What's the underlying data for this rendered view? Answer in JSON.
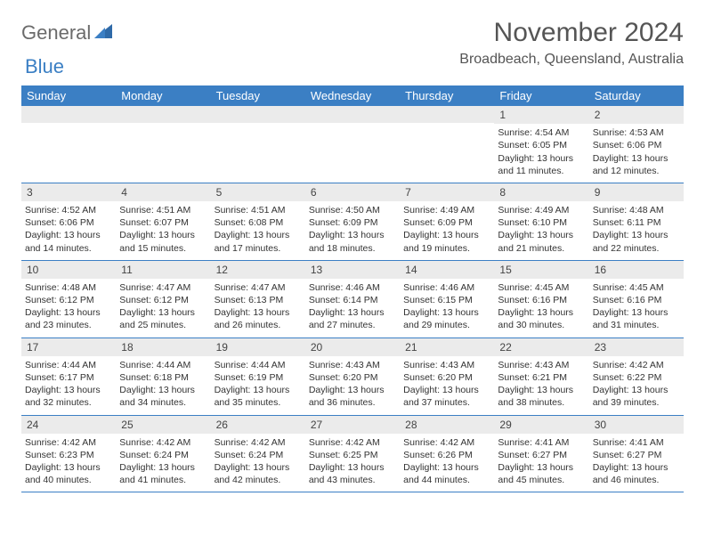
{
  "logo": {
    "text1": "General",
    "text2": "Blue"
  },
  "title": "November 2024",
  "location": "Broadbeach, Queensland, Australia",
  "accent_color": "#3b7fc4",
  "bar_color": "#ebebeb",
  "weekdays": [
    "Sunday",
    "Monday",
    "Tuesday",
    "Wednesday",
    "Thursday",
    "Friday",
    "Saturday"
  ],
  "weeks": [
    [
      null,
      null,
      null,
      null,
      null,
      {
        "n": "1",
        "sr": "4:54 AM",
        "ss": "6:05 PM",
        "dl": "13 hours and 11 minutes."
      },
      {
        "n": "2",
        "sr": "4:53 AM",
        "ss": "6:06 PM",
        "dl": "13 hours and 12 minutes."
      }
    ],
    [
      {
        "n": "3",
        "sr": "4:52 AM",
        "ss": "6:06 PM",
        "dl": "13 hours and 14 minutes."
      },
      {
        "n": "4",
        "sr": "4:51 AM",
        "ss": "6:07 PM",
        "dl": "13 hours and 15 minutes."
      },
      {
        "n": "5",
        "sr": "4:51 AM",
        "ss": "6:08 PM",
        "dl": "13 hours and 17 minutes."
      },
      {
        "n": "6",
        "sr": "4:50 AM",
        "ss": "6:09 PM",
        "dl": "13 hours and 18 minutes."
      },
      {
        "n": "7",
        "sr": "4:49 AM",
        "ss": "6:09 PM",
        "dl": "13 hours and 19 minutes."
      },
      {
        "n": "8",
        "sr": "4:49 AM",
        "ss": "6:10 PM",
        "dl": "13 hours and 21 minutes."
      },
      {
        "n": "9",
        "sr": "4:48 AM",
        "ss": "6:11 PM",
        "dl": "13 hours and 22 minutes."
      }
    ],
    [
      {
        "n": "10",
        "sr": "4:48 AM",
        "ss": "6:12 PM",
        "dl": "13 hours and 23 minutes."
      },
      {
        "n": "11",
        "sr": "4:47 AM",
        "ss": "6:12 PM",
        "dl": "13 hours and 25 minutes."
      },
      {
        "n": "12",
        "sr": "4:47 AM",
        "ss": "6:13 PM",
        "dl": "13 hours and 26 minutes."
      },
      {
        "n": "13",
        "sr": "4:46 AM",
        "ss": "6:14 PM",
        "dl": "13 hours and 27 minutes."
      },
      {
        "n": "14",
        "sr": "4:46 AM",
        "ss": "6:15 PM",
        "dl": "13 hours and 29 minutes."
      },
      {
        "n": "15",
        "sr": "4:45 AM",
        "ss": "6:16 PM",
        "dl": "13 hours and 30 minutes."
      },
      {
        "n": "16",
        "sr": "4:45 AM",
        "ss": "6:16 PM",
        "dl": "13 hours and 31 minutes."
      }
    ],
    [
      {
        "n": "17",
        "sr": "4:44 AM",
        "ss": "6:17 PM",
        "dl": "13 hours and 32 minutes."
      },
      {
        "n": "18",
        "sr": "4:44 AM",
        "ss": "6:18 PM",
        "dl": "13 hours and 34 minutes."
      },
      {
        "n": "19",
        "sr": "4:44 AM",
        "ss": "6:19 PM",
        "dl": "13 hours and 35 minutes."
      },
      {
        "n": "20",
        "sr": "4:43 AM",
        "ss": "6:20 PM",
        "dl": "13 hours and 36 minutes."
      },
      {
        "n": "21",
        "sr": "4:43 AM",
        "ss": "6:20 PM",
        "dl": "13 hours and 37 minutes."
      },
      {
        "n": "22",
        "sr": "4:43 AM",
        "ss": "6:21 PM",
        "dl": "13 hours and 38 minutes."
      },
      {
        "n": "23",
        "sr": "4:42 AM",
        "ss": "6:22 PM",
        "dl": "13 hours and 39 minutes."
      }
    ],
    [
      {
        "n": "24",
        "sr": "4:42 AM",
        "ss": "6:23 PM",
        "dl": "13 hours and 40 minutes."
      },
      {
        "n": "25",
        "sr": "4:42 AM",
        "ss": "6:24 PM",
        "dl": "13 hours and 41 minutes."
      },
      {
        "n": "26",
        "sr": "4:42 AM",
        "ss": "6:24 PM",
        "dl": "13 hours and 42 minutes."
      },
      {
        "n": "27",
        "sr": "4:42 AM",
        "ss": "6:25 PM",
        "dl": "13 hours and 43 minutes."
      },
      {
        "n": "28",
        "sr": "4:42 AM",
        "ss": "6:26 PM",
        "dl": "13 hours and 44 minutes."
      },
      {
        "n": "29",
        "sr": "4:41 AM",
        "ss": "6:27 PM",
        "dl": "13 hours and 45 minutes."
      },
      {
        "n": "30",
        "sr": "4:41 AM",
        "ss": "6:27 PM",
        "dl": "13 hours and 46 minutes."
      }
    ]
  ],
  "labels": {
    "sunrise": "Sunrise: ",
    "sunset": "Sunset: ",
    "daylight": "Daylight: "
  }
}
